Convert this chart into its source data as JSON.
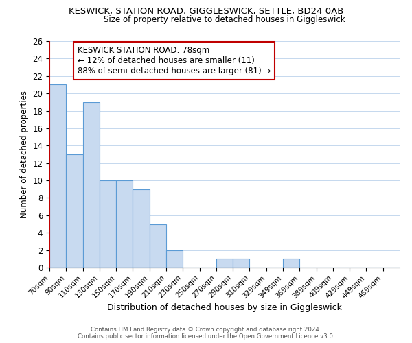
{
  "title1": "KESWICK, STATION ROAD, GIGGLESWICK, SETTLE, BD24 0AB",
  "title2": "Size of property relative to detached houses in Giggleswick",
  "xlabel": "Distribution of detached houses by size in Giggleswick",
  "ylabel": "Number of detached properties",
  "bins": [
    "70sqm",
    "90sqm",
    "110sqm",
    "130sqm",
    "150sqm",
    "170sqm",
    "190sqm",
    "210sqm",
    "230sqm",
    "250sqm",
    "270sqm",
    "290sqm",
    "310sqm",
    "329sqm",
    "349sqm",
    "369sqm",
    "389sqm",
    "409sqm",
    "429sqm",
    "449sqm",
    "469sqm"
  ],
  "values": [
    21,
    13,
    19,
    10,
    10,
    9,
    5,
    2,
    0,
    0,
    1,
    1,
    0,
    0,
    1,
    0,
    0,
    0,
    0,
    0,
    0
  ],
  "bar_color": "#c8daf0",
  "bar_edge_color": "#5b9bd5",
  "annotation_box_edge": "#c00000",
  "annotation_title": "KESWICK STATION ROAD: 78sqm",
  "annotation_line1": "← 12% of detached houses are smaller (11)",
  "annotation_line2": "88% of semi-detached houses are larger (81) →",
  "vline_color": "#c00000",
  "ylim": [
    0,
    26
  ],
  "yticks": [
    0,
    2,
    4,
    6,
    8,
    10,
    12,
    14,
    16,
    18,
    20,
    22,
    24,
    26
  ],
  "footer1": "Contains HM Land Registry data © Crown copyright and database right 2024.",
  "footer2": "Contains public sector information licensed under the Open Government Licence v3.0."
}
